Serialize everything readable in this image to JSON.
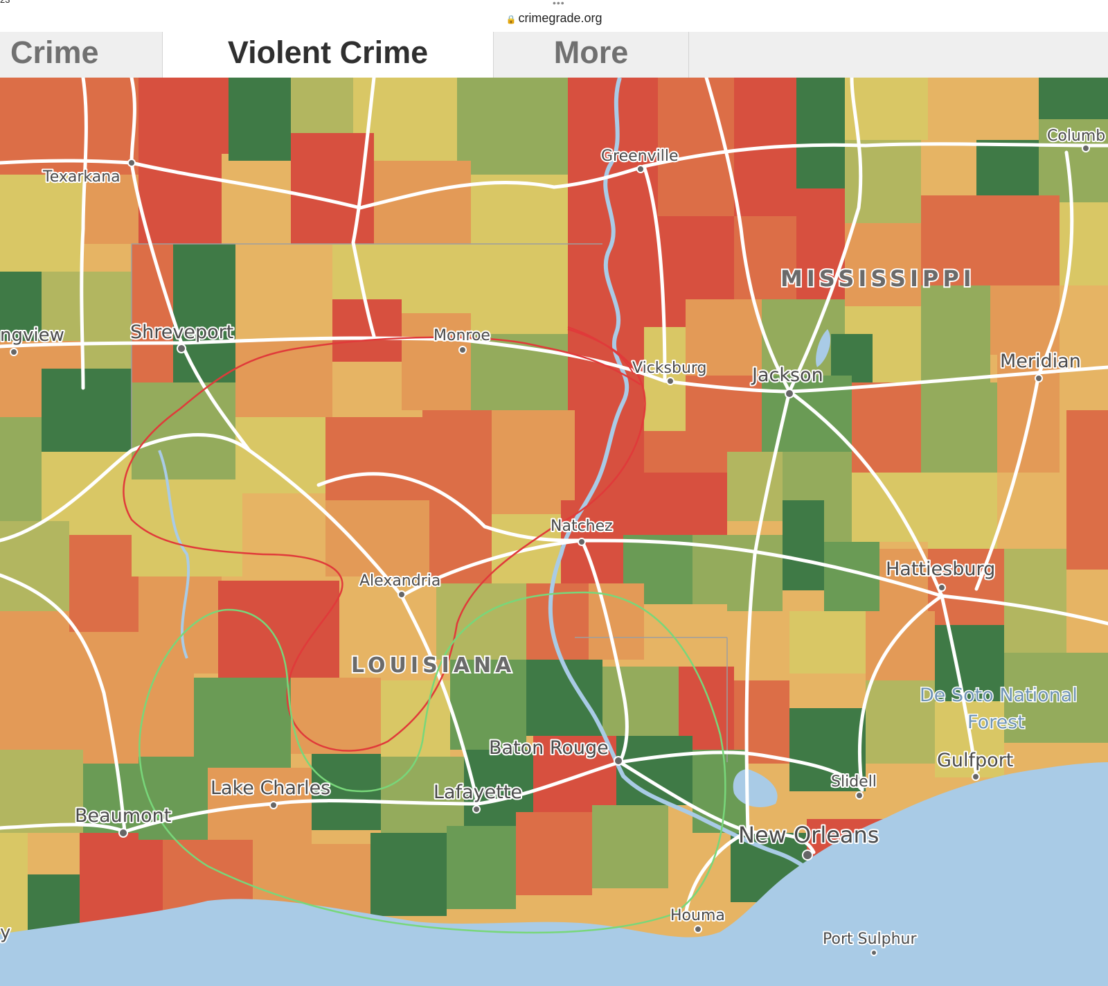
{
  "statusbar": {
    "time": "23",
    "url": "crimegrade.org"
  },
  "tabs": [
    {
      "label": "Crime",
      "active": false
    },
    {
      "label": "Violent Crime",
      "active": true
    },
    {
      "label": "More",
      "active": false
    }
  ],
  "map": {
    "state_labels": {
      "mississippi": "MISSISSIPPI",
      "louisiana": "LOUISIANA"
    },
    "cities": {
      "texarkana": "Texarkana",
      "greenville": "Greenville",
      "columbus": "Columb",
      "longview": "ngview",
      "shreveport": "Shreveport",
      "monroe": "Monroe",
      "vicksburg": "Vicksburg",
      "jackson": "Jackson",
      "meridian": "Meridian",
      "natchez": "Natchez",
      "alexandria": "Alexandria",
      "hattiesburg": "Hattiesburg",
      "baton_rouge": "Baton Rouge",
      "gulfport": "Gulfport",
      "slidell": "Slidell",
      "lake_charles": "Lake Charles",
      "lafayette": "Lafayette",
      "beaumont": "Beaumont",
      "new_orleans": "New Orleans",
      "houma": "Houma",
      "port_sulphur": "Port Sulphur",
      "edge_y": "y"
    },
    "forest_label": {
      "line1": "De Soto National",
      "line2": "Forest"
    },
    "colors": {
      "red": "#d7503f",
      "red_orange": "#dc6e47",
      "orange": "#e39a57",
      "light_orange": "#e6b464",
      "yellow": "#d9c765",
      "yellow_green": "#b2b660",
      "light_green": "#94ab5c",
      "green": "#6a9b55",
      "dark_green": "#3f7a46",
      "water": "#a9cbe6",
      "road": "#ffffff",
      "annotation_red": "#e03a3a",
      "annotation_green": "#78d77a"
    }
  }
}
